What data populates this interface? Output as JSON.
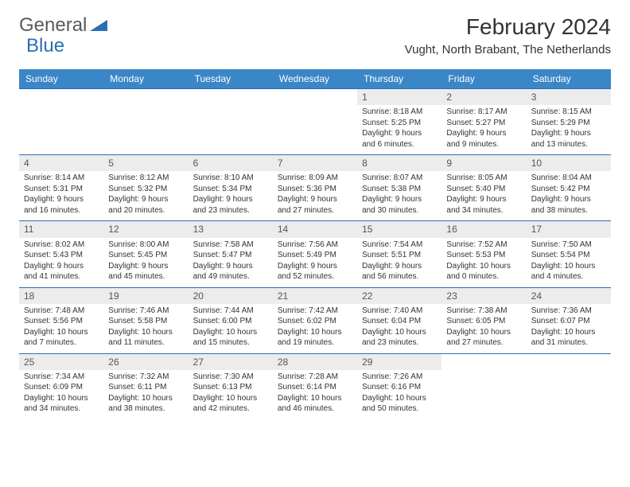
{
  "brand": {
    "part1": "General",
    "part2": "Blue"
  },
  "title": "February 2024",
  "location": "Vught, North Brabant, The Netherlands",
  "colors": {
    "header_bg": "#3b86c7",
    "header_text": "#ffffff",
    "week_border": "#2a6fb5",
    "daynum_bg": "#ececec",
    "text": "#333333",
    "logo_blue": "#2a6fb5"
  },
  "day_names": [
    "Sunday",
    "Monday",
    "Tuesday",
    "Wednesday",
    "Thursday",
    "Friday",
    "Saturday"
  ],
  "weeks": [
    [
      null,
      null,
      null,
      null,
      {
        "n": "1",
        "sunrise": "8:18 AM",
        "sunset": "5:25 PM",
        "dl1": "Daylight: 9 hours",
        "dl2": "and 6 minutes."
      },
      {
        "n": "2",
        "sunrise": "8:17 AM",
        "sunset": "5:27 PM",
        "dl1": "Daylight: 9 hours",
        "dl2": "and 9 minutes."
      },
      {
        "n": "3",
        "sunrise": "8:15 AM",
        "sunset": "5:29 PM",
        "dl1": "Daylight: 9 hours",
        "dl2": "and 13 minutes."
      }
    ],
    [
      {
        "n": "4",
        "sunrise": "8:14 AM",
        "sunset": "5:31 PM",
        "dl1": "Daylight: 9 hours",
        "dl2": "and 16 minutes."
      },
      {
        "n": "5",
        "sunrise": "8:12 AM",
        "sunset": "5:32 PM",
        "dl1": "Daylight: 9 hours",
        "dl2": "and 20 minutes."
      },
      {
        "n": "6",
        "sunrise": "8:10 AM",
        "sunset": "5:34 PM",
        "dl1": "Daylight: 9 hours",
        "dl2": "and 23 minutes."
      },
      {
        "n": "7",
        "sunrise": "8:09 AM",
        "sunset": "5:36 PM",
        "dl1": "Daylight: 9 hours",
        "dl2": "and 27 minutes."
      },
      {
        "n": "8",
        "sunrise": "8:07 AM",
        "sunset": "5:38 PM",
        "dl1": "Daylight: 9 hours",
        "dl2": "and 30 minutes."
      },
      {
        "n": "9",
        "sunrise": "8:05 AM",
        "sunset": "5:40 PM",
        "dl1": "Daylight: 9 hours",
        "dl2": "and 34 minutes."
      },
      {
        "n": "10",
        "sunrise": "8:04 AM",
        "sunset": "5:42 PM",
        "dl1": "Daylight: 9 hours",
        "dl2": "and 38 minutes."
      }
    ],
    [
      {
        "n": "11",
        "sunrise": "8:02 AM",
        "sunset": "5:43 PM",
        "dl1": "Daylight: 9 hours",
        "dl2": "and 41 minutes."
      },
      {
        "n": "12",
        "sunrise": "8:00 AM",
        "sunset": "5:45 PM",
        "dl1": "Daylight: 9 hours",
        "dl2": "and 45 minutes."
      },
      {
        "n": "13",
        "sunrise": "7:58 AM",
        "sunset": "5:47 PM",
        "dl1": "Daylight: 9 hours",
        "dl2": "and 49 minutes."
      },
      {
        "n": "14",
        "sunrise": "7:56 AM",
        "sunset": "5:49 PM",
        "dl1": "Daylight: 9 hours",
        "dl2": "and 52 minutes."
      },
      {
        "n": "15",
        "sunrise": "7:54 AM",
        "sunset": "5:51 PM",
        "dl1": "Daylight: 9 hours",
        "dl2": "and 56 minutes."
      },
      {
        "n": "16",
        "sunrise": "7:52 AM",
        "sunset": "5:53 PM",
        "dl1": "Daylight: 10 hours",
        "dl2": "and 0 minutes."
      },
      {
        "n": "17",
        "sunrise": "7:50 AM",
        "sunset": "5:54 PM",
        "dl1": "Daylight: 10 hours",
        "dl2": "and 4 minutes."
      }
    ],
    [
      {
        "n": "18",
        "sunrise": "7:48 AM",
        "sunset": "5:56 PM",
        "dl1": "Daylight: 10 hours",
        "dl2": "and 7 minutes."
      },
      {
        "n": "19",
        "sunrise": "7:46 AM",
        "sunset": "5:58 PM",
        "dl1": "Daylight: 10 hours",
        "dl2": "and 11 minutes."
      },
      {
        "n": "20",
        "sunrise": "7:44 AM",
        "sunset": "6:00 PM",
        "dl1": "Daylight: 10 hours",
        "dl2": "and 15 minutes."
      },
      {
        "n": "21",
        "sunrise": "7:42 AM",
        "sunset": "6:02 PM",
        "dl1": "Daylight: 10 hours",
        "dl2": "and 19 minutes."
      },
      {
        "n": "22",
        "sunrise": "7:40 AM",
        "sunset": "6:04 PM",
        "dl1": "Daylight: 10 hours",
        "dl2": "and 23 minutes."
      },
      {
        "n": "23",
        "sunrise": "7:38 AM",
        "sunset": "6:05 PM",
        "dl1": "Daylight: 10 hours",
        "dl2": "and 27 minutes."
      },
      {
        "n": "24",
        "sunrise": "7:36 AM",
        "sunset": "6:07 PM",
        "dl1": "Daylight: 10 hours",
        "dl2": "and 31 minutes."
      }
    ],
    [
      {
        "n": "25",
        "sunrise": "7:34 AM",
        "sunset": "6:09 PM",
        "dl1": "Daylight: 10 hours",
        "dl2": "and 34 minutes."
      },
      {
        "n": "26",
        "sunrise": "7:32 AM",
        "sunset": "6:11 PM",
        "dl1": "Daylight: 10 hours",
        "dl2": "and 38 minutes."
      },
      {
        "n": "27",
        "sunrise": "7:30 AM",
        "sunset": "6:13 PM",
        "dl1": "Daylight: 10 hours",
        "dl2": "and 42 minutes."
      },
      {
        "n": "28",
        "sunrise": "7:28 AM",
        "sunset": "6:14 PM",
        "dl1": "Daylight: 10 hours",
        "dl2": "and 46 minutes."
      },
      {
        "n": "29",
        "sunrise": "7:26 AM",
        "sunset": "6:16 PM",
        "dl1": "Daylight: 10 hours",
        "dl2": "and 50 minutes."
      },
      null,
      null
    ]
  ],
  "labels": {
    "sunrise": "Sunrise: ",
    "sunset": "Sunset: "
  }
}
